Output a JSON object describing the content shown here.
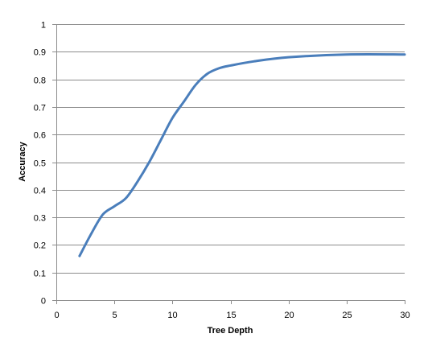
{
  "chart_data": {
    "type": "line",
    "xlabel": "Tree Depth",
    "ylabel": "Accuracy",
    "xlim": [
      0,
      30
    ],
    "ylim": [
      0,
      1
    ],
    "x_ticks": [
      "0",
      "5",
      "10",
      "15",
      "20",
      "25",
      "30"
    ],
    "y_ticks": [
      "0",
      "0.1",
      "0.2",
      "0.3",
      "0.4",
      "0.5",
      "0.6",
      "0.7",
      "0.8",
      "0.9",
      "1"
    ],
    "grid": "horizontal",
    "legend": "none",
    "series": [
      {
        "color": "#4a7ebb",
        "points": [
          {
            "x": 2,
            "y": 0.16
          },
          {
            "x": 3,
            "y": 0.24
          },
          {
            "x": 4,
            "y": 0.31
          },
          {
            "x": 5,
            "y": 0.34
          },
          {
            "x": 6,
            "y": 0.37
          },
          {
            "x": 7,
            "y": 0.43
          },
          {
            "x": 8,
            "y": 0.5
          },
          {
            "x": 9,
            "y": 0.58
          },
          {
            "x": 10,
            "y": 0.66
          },
          {
            "x": 11,
            "y": 0.72
          },
          {
            "x": 12,
            "y": 0.78
          },
          {
            "x": 13,
            "y": 0.82
          },
          {
            "x": 14,
            "y": 0.84
          },
          {
            "x": 15,
            "y": 0.85
          },
          {
            "x": 17,
            "y": 0.865
          },
          {
            "x": 20,
            "y": 0.88
          },
          {
            "x": 25,
            "y": 0.89
          },
          {
            "x": 30,
            "y": 0.89
          }
        ]
      }
    ]
  }
}
